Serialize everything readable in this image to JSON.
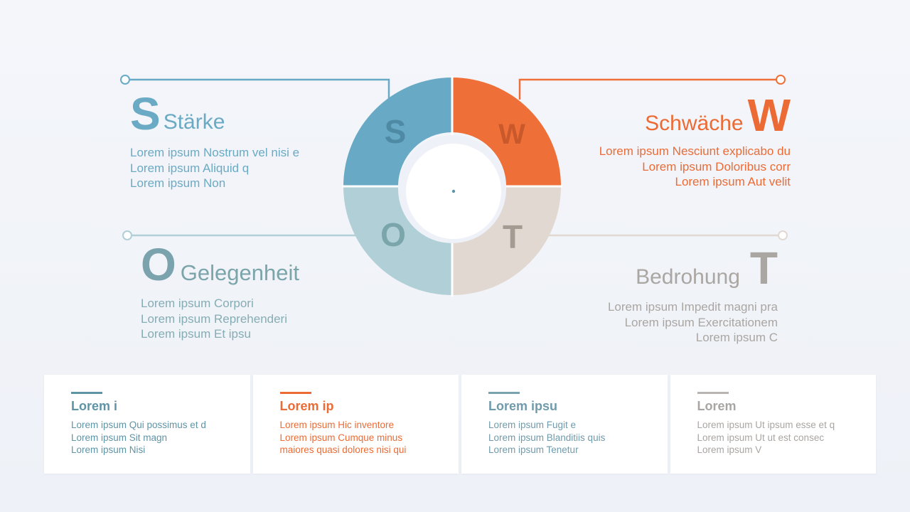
{
  "colors": {
    "s": "#68aac6",
    "w": "#ee7038",
    "o": "#b0cfd6",
    "t": "#e1d8d1",
    "s_card": "#5f94a6",
    "w_card": "#ec6b35",
    "o_card": "#6f9bac",
    "t_card": "#a9a5a2"
  },
  "wheel": {
    "s_letter": "S",
    "w_letter": "W",
    "o_letter": "O",
    "t_letter": "T"
  },
  "quadrants": {
    "s": {
      "letter": "S",
      "title": "Stärke",
      "lines": [
        "Lorem ipsum Nostrum vel nisi e",
        "Lorem ipsum Aliquid q",
        "Lorem ipsum Non"
      ]
    },
    "w": {
      "letter": "W",
      "title": "Schwäche",
      "lines": [
        "Lorem ipsum Nesciunt explicabo du",
        "Lorem ipsum Doloribus corr",
        "Lorem ipsum Aut velit"
      ]
    },
    "o": {
      "letter": "O",
      "title": "Gelegenheit",
      "lines": [
        "Lorem ipsum Corpori",
        "Lorem ipsum Reprehenderi",
        "Lorem ipsum Et ipsu"
      ]
    },
    "t": {
      "letter": "T",
      "title": "Bedrohung",
      "lines": [
        "Lorem ipsum Impedit magni pra",
        "Lorem ipsum Exercitationem",
        "Lorem ipsum C"
      ]
    }
  },
  "cards": [
    {
      "title": "Lorem i",
      "lines": [
        "Lorem ipsum Qui possimus et d",
        "Lorem ipsum Sit magn",
        "Lorem ipsum Nisi"
      ]
    },
    {
      "title": "Lorem ip",
      "lines": [
        "Lorem ipsum Hic inventore",
        "Lorem ipsum Cumque minus",
        "maiores quasi dolores nisi qui"
      ]
    },
    {
      "title": "Lorem ipsu",
      "lines": [
        "Lorem ipsum Fugit e",
        "Lorem ipsum Blanditiis quis",
        "Lorem ipsum Tenetur"
      ]
    },
    {
      "title": "Lorem",
      "lines": [
        "Lorem ipsum Ut ipsum esse et q",
        "Lorem ipsum Ut ut est consec",
        "Lorem ipsum V"
      ]
    }
  ]
}
